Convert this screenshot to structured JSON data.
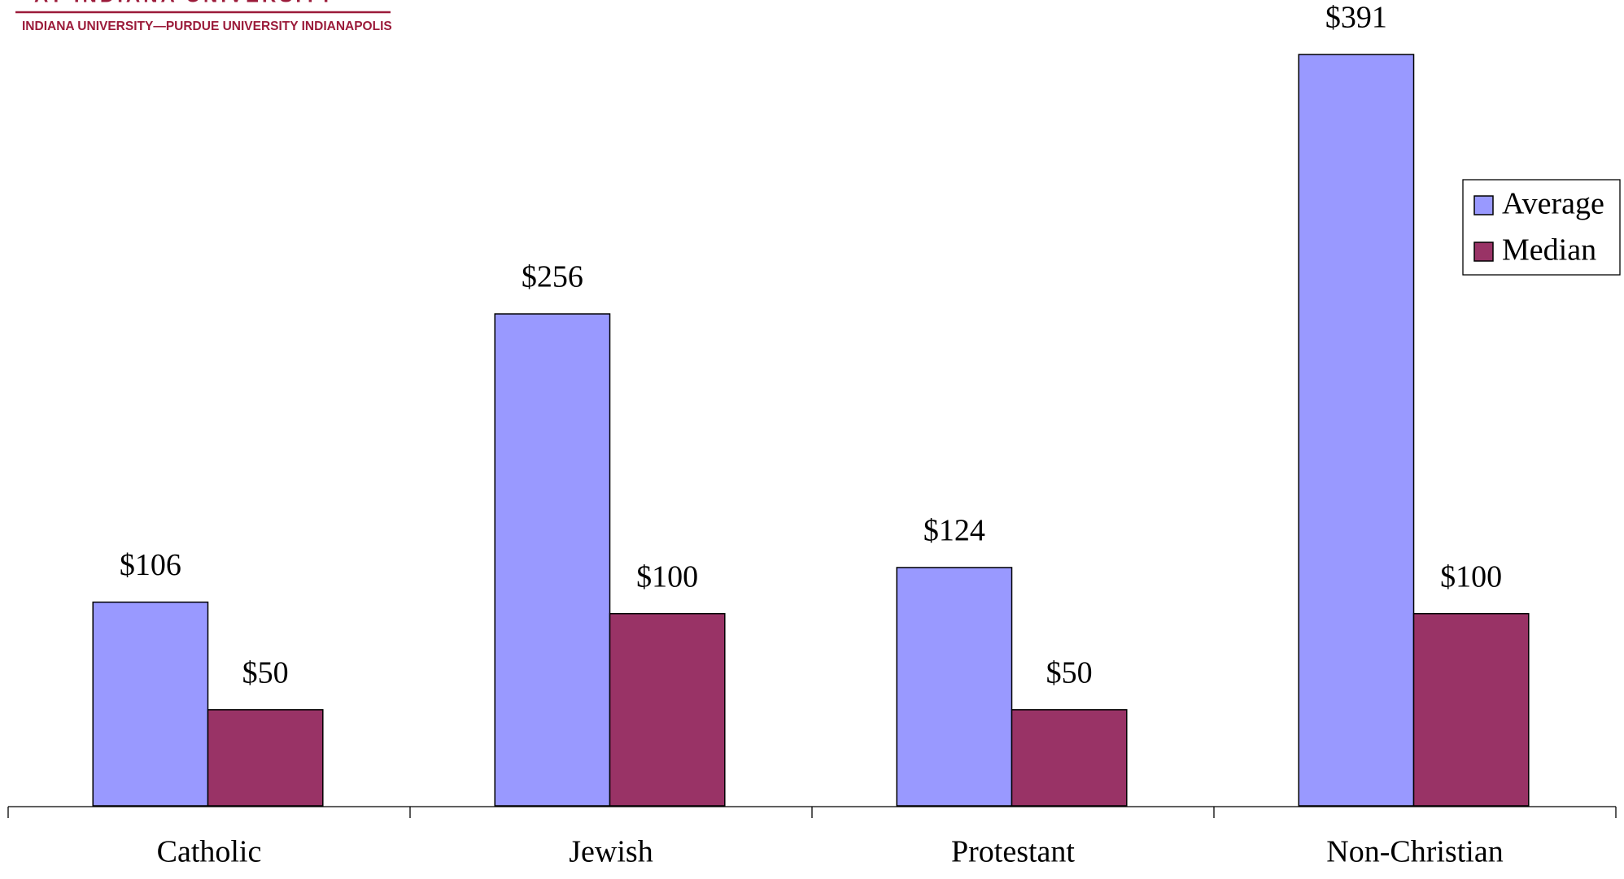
{
  "header": {
    "tagline": "AT INDIANA UNIVERSITY",
    "institution": "INDIANA UNIVERSITY—PURDUE UNIVERSITY INDIANAPOLIS"
  },
  "chart_data": {
    "type": "bar",
    "categories": [
      "Catholic",
      "Jewish",
      "Protestant",
      "Non-Christian"
    ],
    "series": [
      {
        "name": "Average",
        "color": "#9999ff",
        "values": [
          106,
          256,
          124,
          391
        ],
        "value_labels": [
          "$106",
          "$256",
          "$124",
          "$391"
        ]
      },
      {
        "name": "Median",
        "color": "#993366",
        "values": [
          50,
          100,
          50,
          100
        ],
        "value_labels": [
          "$50",
          "$100",
          "$50",
          "$100"
        ]
      }
    ],
    "legend": "right"
  }
}
